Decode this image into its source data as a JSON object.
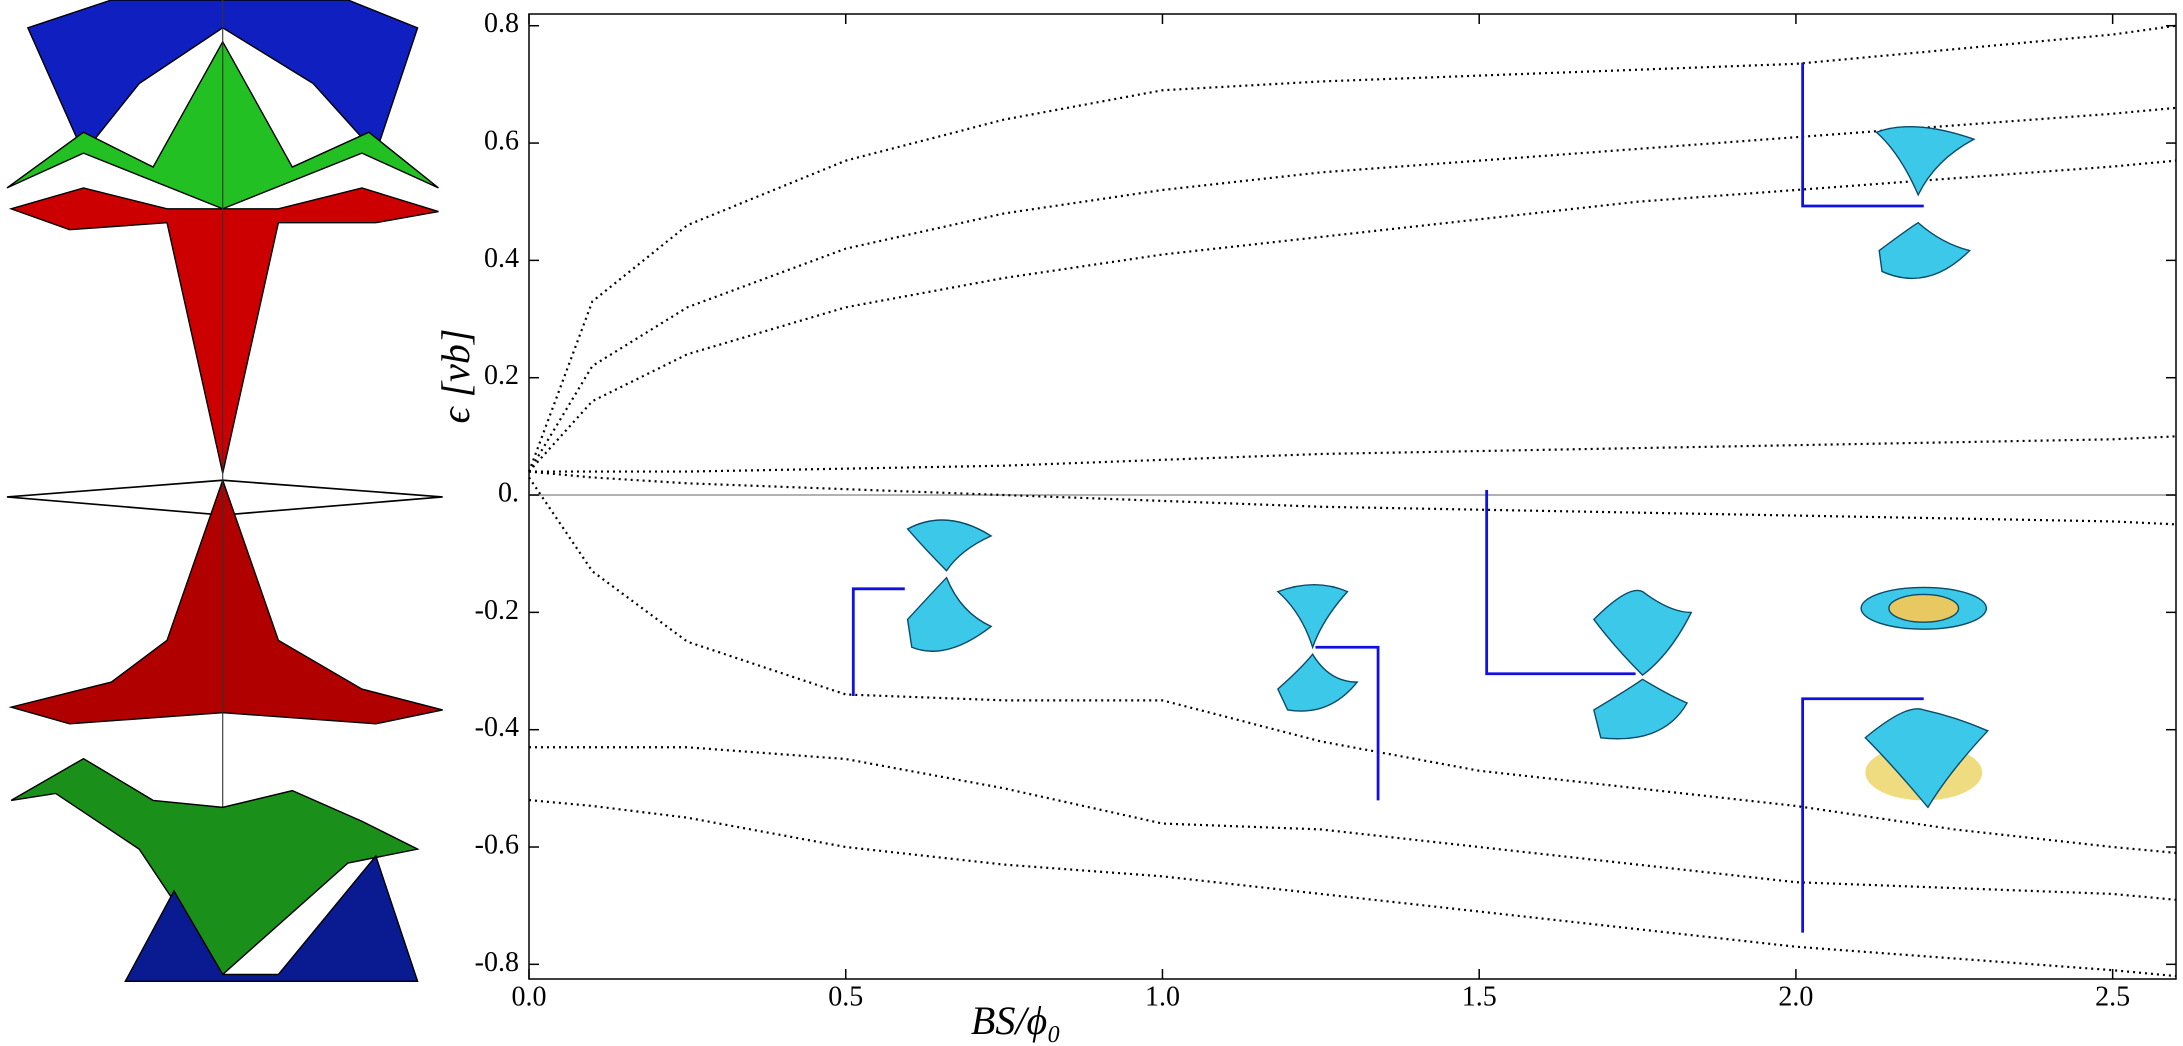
{
  "chart_data": {
    "type": "line",
    "xlabel": "BS/ϕ₀",
    "ylabel": "ϵ [vb]",
    "x": [
      0,
      0.1,
      0.25,
      0.5,
      0.75,
      1.0,
      1.25,
      1.5,
      1.75,
      2.0,
      2.25,
      2.5,
      2.6
    ],
    "series": [
      {
        "color": "#000000",
        "values": [
          0.04,
          0.33,
          0.46,
          0.57,
          0.64,
          0.69,
          0.705,
          0.715,
          0.725,
          0.735,
          0.76,
          0.785,
          0.8
        ]
      },
      {
        "color": "#000000",
        "values": [
          0.04,
          0.22,
          0.32,
          0.42,
          0.48,
          0.52,
          0.55,
          0.57,
          0.59,
          0.61,
          0.63,
          0.65,
          0.66
        ]
      },
      {
        "color": "#000000",
        "values": [
          0.04,
          0.16,
          0.24,
          0.32,
          0.37,
          0.41,
          0.44,
          0.47,
          0.5,
          0.52,
          0.54,
          0.56,
          0.57
        ]
      },
      {
        "color": "#000000",
        "values": [
          0.04,
          0.04,
          0.04,
          0.045,
          0.05,
          0.06,
          0.07,
          0.075,
          0.08,
          0.085,
          0.09,
          0.095,
          0.1
        ]
      },
      {
        "color": "#000000",
        "values": [
          0.04,
          0.03,
          0.02,
          0.01,
          0,
          -0.01,
          -0.02,
          -0.025,
          -0.03,
          -0.035,
          -0.04,
          -0.045,
          -0.05
        ]
      },
      {
        "color": "#000000",
        "values": [
          0.03,
          -0.13,
          -0.25,
          -0.34,
          -0.35,
          -0.35,
          -0.42,
          -0.47,
          -0.5,
          -0.53,
          -0.57,
          -0.6,
          -0.61
        ]
      },
      {
        "color": "#000000",
        "values": [
          -0.43,
          -0.43,
          -0.43,
          -0.45,
          -0.5,
          -0.56,
          -0.57,
          -0.6,
          -0.63,
          -0.66,
          -0.67,
          -0.68,
          -0.69
        ]
      },
      {
        "color": "#000000",
        "values": [
          -0.52,
          -0.53,
          -0.55,
          -0.6,
          -0.63,
          -0.65,
          -0.68,
          -0.71,
          -0.74,
          -0.77,
          -0.79,
          -0.81,
          -0.82
        ]
      }
    ],
    "xlim": [
      0,
      2.6
    ],
    "ylim": [
      -0.825,
      0.82
    ],
    "xticks": [
      {
        "value": 0,
        "label": "0.0"
      },
      0.5,
      {
        "value": 1,
        "label": "1.0"
      },
      1.5,
      {
        "value": 2,
        "label": "2.0"
      },
      2.5
    ],
    "yticks": [
      -0.8,
      -0.6,
      -0.4,
      -0.2,
      {
        "value": 0,
        "label": "0."
      },
      0.2,
      0.4,
      0.6,
      0.8
    ]
  }
}
